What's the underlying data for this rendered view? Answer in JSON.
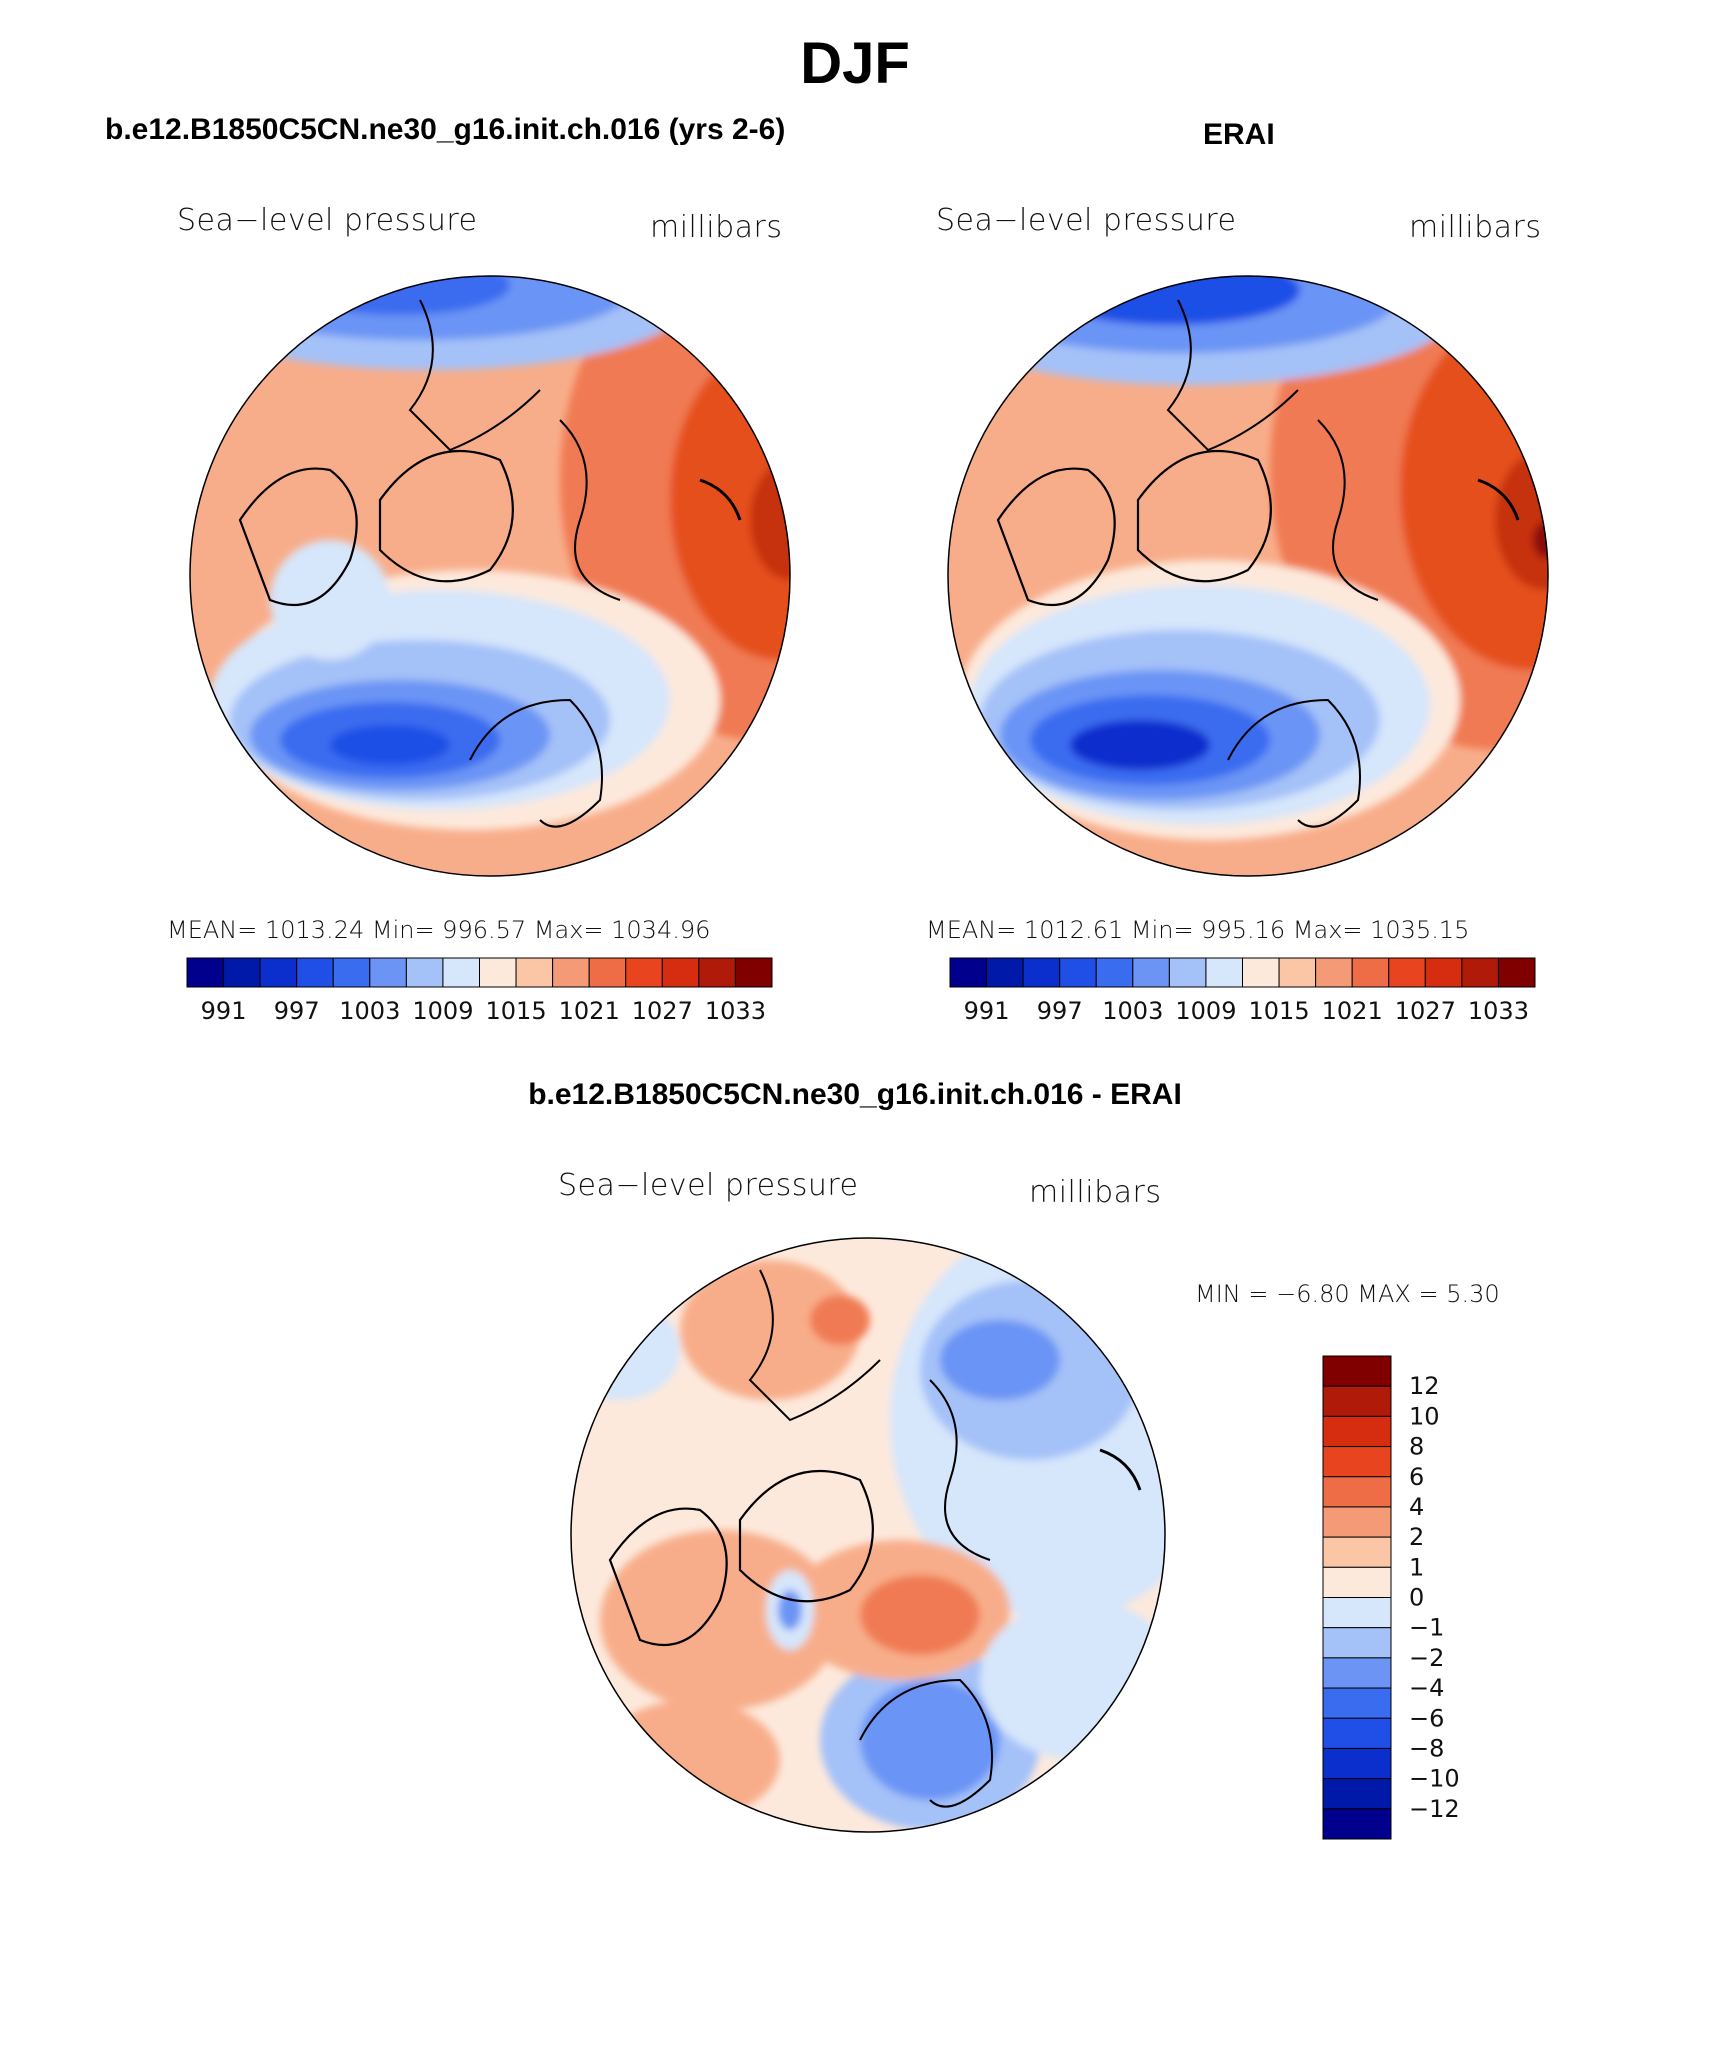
{
  "title": "DJF",
  "panels": [
    {
      "id": "model",
      "title": "b.e12.B1850C5CN.ne30_g16.init.ch.016 (yrs 2-6)",
      "variable": "Sea−level pressure",
      "units": "millibars",
      "stats": "MEAN= 1013.24   Min= 996.57   Max= 1034.96"
    },
    {
      "id": "obs",
      "title": "ERAI",
      "variable": "Sea−level pressure",
      "units": "millibars",
      "stats": "MEAN= 1012.61   Min= 995.16   Max= 1035.15"
    },
    {
      "id": "diff",
      "title": "b.e12.B1850C5CN.ne30_g16.init.ch.016 - ERAI",
      "variable": "Sea−level pressure",
      "units": "millibars",
      "stats": "MIN =   −6.80  MAX =     5.30"
    }
  ],
  "colorbar_slp": {
    "colors": [
      "#00008c",
      "#0019a8",
      "#0a2fcc",
      "#1f4fe6",
      "#3a6cf0",
      "#6b94f5",
      "#a4c1f8",
      "#d6e6fb",
      "#fde9dc",
      "#fbc6a6",
      "#f49a76",
      "#ee6d47",
      "#e84420",
      "#d62c10",
      "#b01a08",
      "#800000"
    ],
    "tick_labels": [
      "991",
      "997",
      "1003",
      "1009",
      "1015",
      "1021",
      "1027",
      "1033"
    ]
  },
  "colorbar_diff": {
    "colors": [
      "#00008c",
      "#0019a8",
      "#0a2fcc",
      "#1f4fe6",
      "#3a6cf0",
      "#6b94f5",
      "#a4c1f8",
      "#d6e6fb",
      "#fde9dc",
      "#fbc6a6",
      "#f49a76",
      "#ee6d47",
      "#e84420",
      "#d62c10",
      "#b01a08",
      "#800000"
    ],
    "tick_labels": [
      "12",
      "10",
      "8",
      "6",
      "4",
      "2",
      "1",
      "0",
      "−1",
      "−2",
      "−4",
      "−6",
      "−8",
      "−10",
      "−12"
    ]
  }
}
